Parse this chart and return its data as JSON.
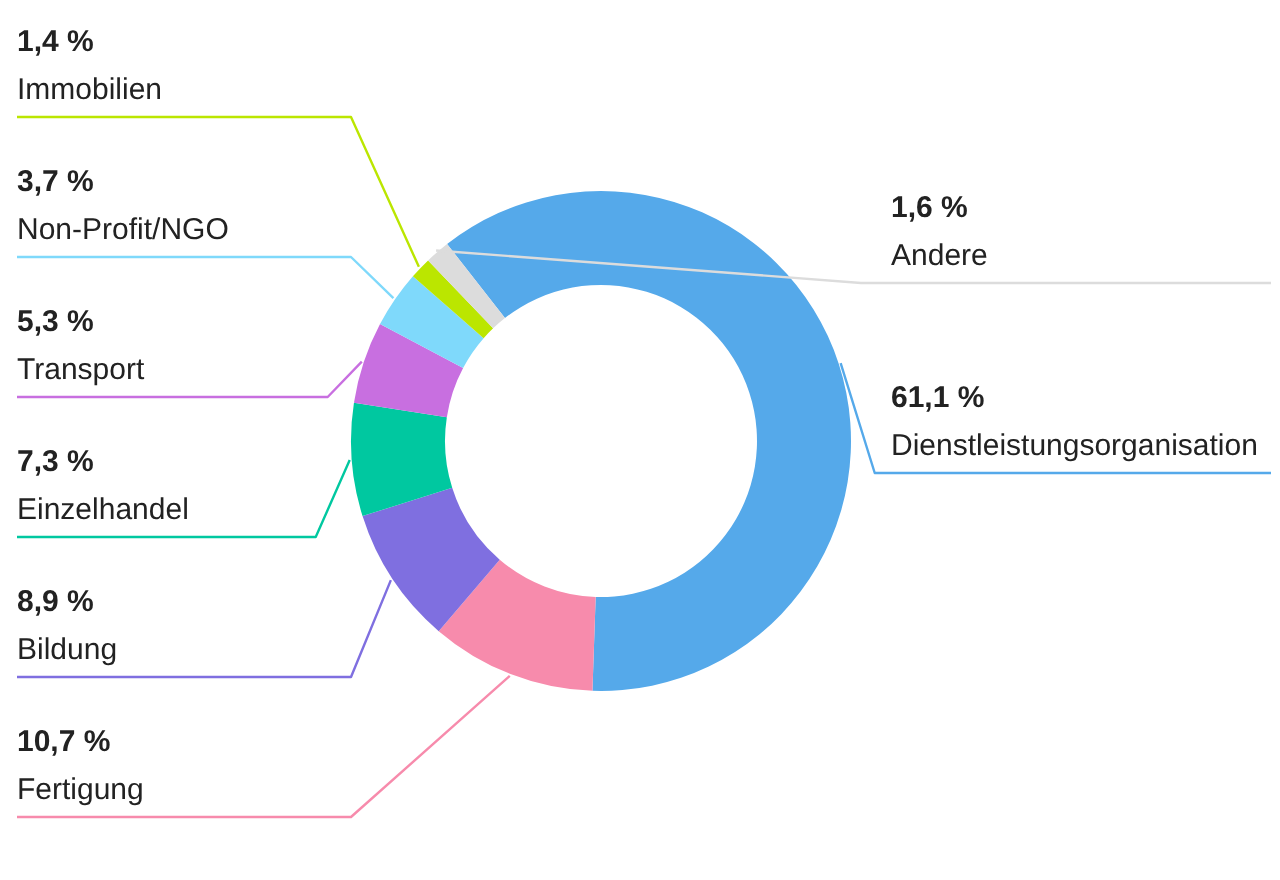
{
  "chart_data": {
    "type": "donut",
    "categories": [
      "Dienstleistungsorganisation",
      "Fertigung",
      "Bildung",
      "Einzelhandel",
      "Transport",
      "Non-Profit/NGO",
      "Immobilien",
      "Andere"
    ],
    "values": [
      61.1,
      10.7,
      8.9,
      7.3,
      5.3,
      3.7,
      1.4,
      1.6
    ],
    "value_labels": [
      "61,1 %",
      "10,7 %",
      "8,9 %",
      "7,3 %",
      "5,3 %",
      "3,7 %",
      "1,4 %",
      "1,6 %"
    ],
    "colors": [
      "#55a9ea",
      "#f78bac",
      "#7f6fe0",
      "#00c8a0",
      "#c86fe0",
      "#7fd9fb",
      "#bbe600",
      "#dcdcdc"
    ]
  }
}
